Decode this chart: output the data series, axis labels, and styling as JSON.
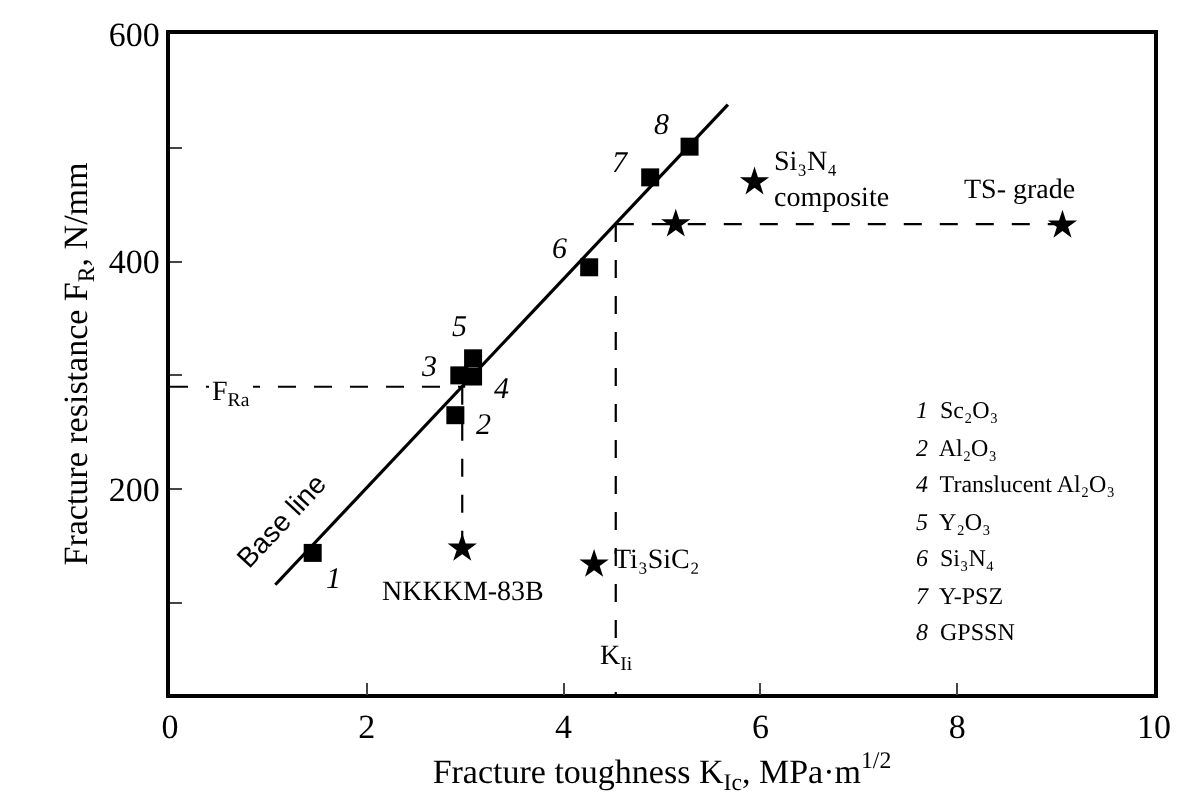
{
  "chart_data": {
    "type": "scatter",
    "xlabel": "Fracture toughness K$_{Ic}$, MPa·m$^{1/2}$",
    "ylabel": "Fracture resistance F$_{R}$, N/mm",
    "xlim": [
      0,
      10
    ],
    "xticks": [
      0,
      2,
      4,
      6,
      8,
      10
    ],
    "ylim": [
      20,
      600
    ],
    "yticks": [
      {
        "value": 100,
        "label": null
      },
      200,
      {
        "value": 300,
        "label": null
      },
      400,
      {
        "value": 500,
        "label": null
      },
      600
    ],
    "grid": false,
    "series": [
      {
        "marker": "square",
        "color": "#000000",
        "x": [
          1.45,
          2.9,
          2.94,
          3.08,
          3.08,
          4.26,
          4.88,
          5.28
        ],
        "values": [
          144,
          265,
          300,
          299,
          315,
          395,
          474,
          501
        ]
      },
      {
        "marker": "star",
        "color": "#000000",
        "x": [
          2.97,
          4.31,
          5.14,
          5.94,
          9.07
        ],
        "values": [
          148,
          134,
          433,
          470,
          432
        ]
      },
      {
        "type": "line",
        "marker": "none",
        "line_style": "solid",
        "color": "#000000",
        "x": [
          1.07,
          5.67
        ],
        "values": [
          116,
          538
        ]
      },
      {
        "type": "line",
        "marker": "none",
        "line_style": "dashed",
        "color": "#000000",
        "x": [
          0,
          3.0
        ],
        "values": [
          290,
          290
        ]
      },
      {
        "type": "line",
        "marker": "none",
        "line_style": "dashed",
        "color": "#000000",
        "x": [
          2.97,
          2.97
        ],
        "values": [
          290,
          148
        ]
      },
      {
        "type": "line",
        "marker": "none",
        "line_style": "dashed",
        "color": "#000000",
        "x": [
          4.53,
          4.53
        ],
        "values": [
          433,
          20
        ]
      },
      {
        "type": "line",
        "marker": "none",
        "line_style": "dashed",
        "color": "#000000",
        "x": [
          4.53,
          9.07
        ],
        "values": [
          433,
          433
        ]
      }
    ],
    "annotations": [
      {
        "text": "1",
        "x": 1.45,
        "y": 144
      },
      {
        "text": "2",
        "x": 2.9,
        "y": 265
      },
      {
        "text": "3",
        "x": 2.94,
        "y": 300
      },
      {
        "text": "4",
        "x": 3.08,
        "y": 299
      },
      {
        "text": "5",
        "x": 3.08,
        "y": 315
      },
      {
        "text": "6",
        "x": 4.26,
        "y": 395
      },
      {
        "text": "7",
        "x": 4.88,
        "y": 474
      },
      {
        "text": "8",
        "x": 5.28,
        "y": 501
      },
      {
        "text": "NKKKM-83B",
        "x": 2.97,
        "y": 148
      },
      {
        "text": "Ti₃SiC₂",
        "x": 4.31,
        "y": 134
      },
      {
        "text": "Si₃N₄\ncomposite",
        "x": 5.94,
        "y": 470
      },
      {
        "text": "TS- grade",
        "x": 9.07,
        "y": 432
      },
      {
        "text": "F$_{Ra}$",
        "x": 0,
        "y": 290
      },
      {
        "text": "K$_{Ii}$",
        "x": 4.53,
        "y": 20
      },
      {
        "text": "Base line",
        "x": 1.3,
        "y": 137
      },
      "1  Sc₂O₃",
      "2  Al₂O₃",
      "4  Translucent Al₂O₃",
      "5  Y₂O₃",
      "6  Si₃N₄",
      "7  Y-PSZ",
      "8  GPSSN"
    ]
  }
}
